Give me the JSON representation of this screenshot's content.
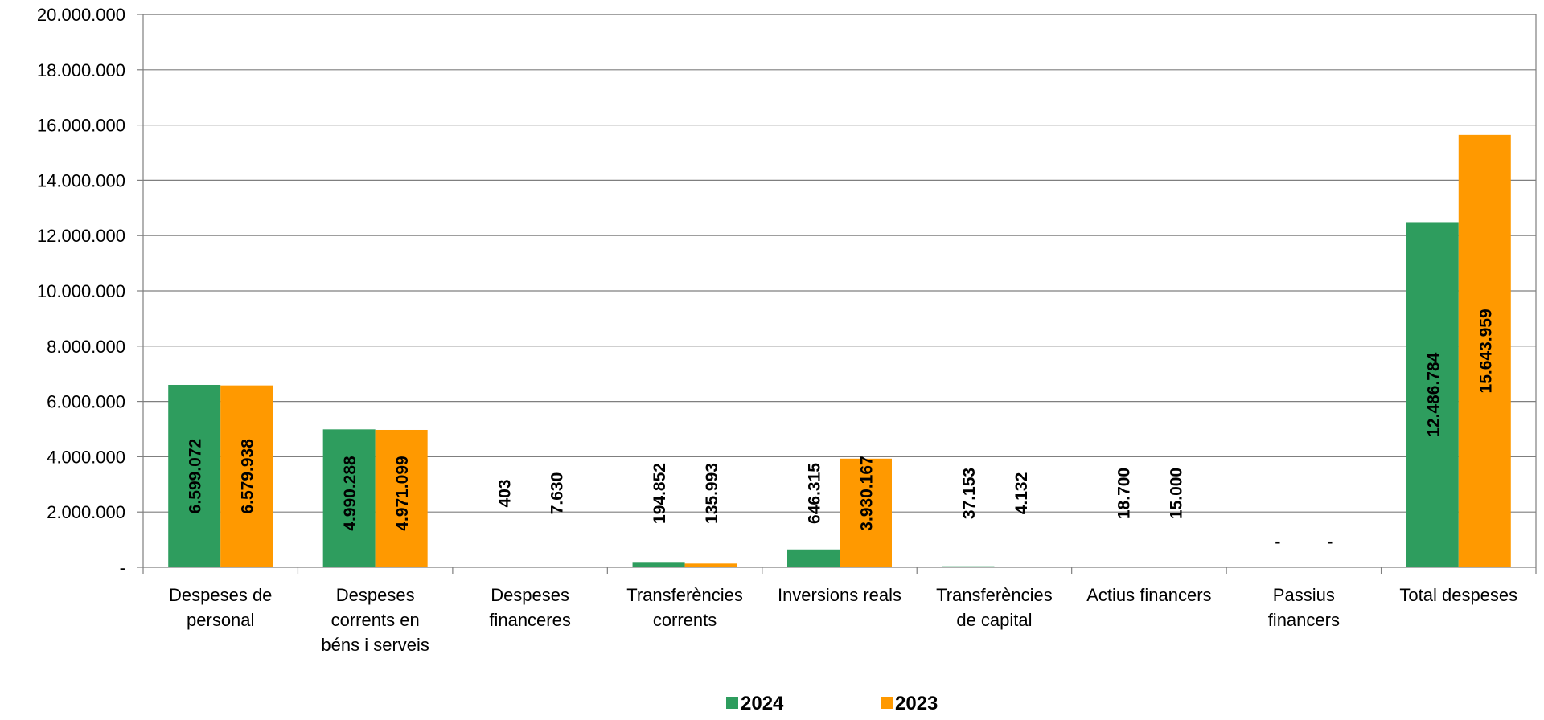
{
  "chart_data": {
    "type": "bar",
    "title": "",
    "xlabel": "",
    "ylabel": "",
    "ylim": [
      0,
      20000000
    ],
    "yticks": [
      0,
      2000000,
      4000000,
      6000000,
      8000000,
      10000000,
      12000000,
      14000000,
      16000000,
      18000000,
      20000000
    ],
    "ytick_labels": [
      "-",
      "2.000.000",
      "4.000.000",
      "6.000.000",
      "8.000.000",
      "10.000.000",
      "12.000.000",
      "14.000.000",
      "16.000.000",
      "18.000.000",
      "20.000.000"
    ],
    "grid": true,
    "legend_position": "bottom",
    "categories": [
      [
        "Despeses de",
        "personal"
      ],
      [
        "Despeses",
        "corrents en",
        "béns i serveis"
      ],
      [
        "Despeses",
        "financeres"
      ],
      [
        "Transferències",
        "corrents"
      ],
      [
        "Inversions reals"
      ],
      [
        "Transferències",
        "de capital"
      ],
      [
        "Actius financers"
      ],
      [
        "Passius",
        "financers"
      ],
      [
        "Total despeses"
      ]
    ],
    "series": [
      {
        "name": "2024",
        "color": "#2E9D5E",
        "values": [
          6599072,
          4990288,
          403,
          194852,
          646315,
          37153,
          18700,
          0,
          12486784
        ],
        "labels": [
          "6.599.072",
          "4.990.288",
          "403",
          "194.852",
          "646.315",
          "37.153",
          "18.700",
          "-",
          "12.486.784"
        ]
      },
      {
        "name": "2023",
        "color": "#FF9900",
        "values": [
          6579938,
          4971099,
          7630,
          135993,
          3930167,
          4132,
          15000,
          0,
          15643959
        ],
        "labels": [
          "6.579.938",
          "4.971.099",
          "7.630",
          "135.993",
          "3.930.167",
          "4.132",
          "15.000",
          "-",
          "15.643.959"
        ]
      }
    ]
  }
}
